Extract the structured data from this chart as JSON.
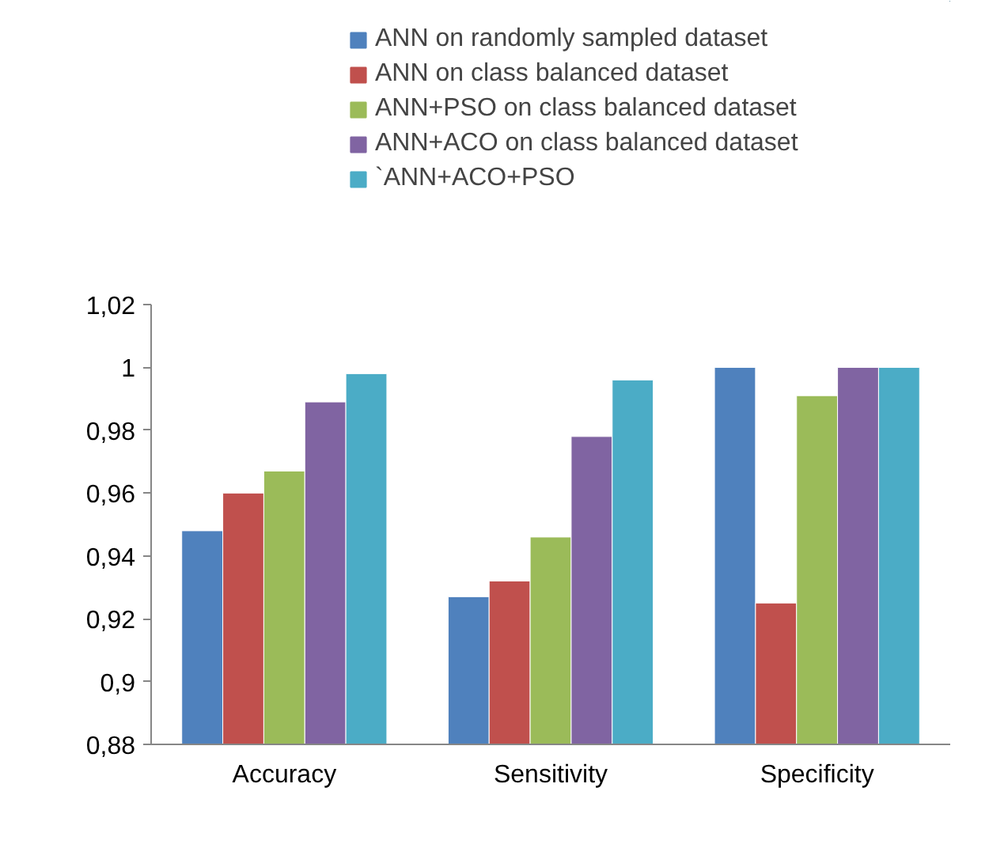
{
  "chart_data": {
    "type": "bar",
    "categories": [
      "Accuracy",
      "Sensitivity",
      "Specificity"
    ],
    "series": [
      {
        "name": "ANN on randomly sampled dataset",
        "color": "#4f81bd",
        "values": [
          0.948,
          0.927,
          1.0
        ]
      },
      {
        "name": "ANN on class balanced dataset",
        "color": "#c0504d",
        "values": [
          0.96,
          0.932,
          0.925
        ]
      },
      {
        "name": "ANN+PSO on class balanced dataset",
        "color": "#9bbb59",
        "values": [
          0.967,
          0.946,
          0.991
        ]
      },
      {
        "name": "ANN+ACO on class balanced dataset",
        "color": "#8064a2",
        "values": [
          0.989,
          0.978,
          1.0
        ]
      },
      {
        "name": "`ANN+ACO+PSO",
        "color": "#4bacc6",
        "values": [
          0.998,
          0.996,
          1.0
        ]
      }
    ],
    "ylim": [
      0.88,
      1.02
    ],
    "yticks": [
      {
        "value": 0.88,
        "label": "0,88"
      },
      {
        "value": 0.9,
        "label": "0,9"
      },
      {
        "value": 0.92,
        "label": "0,92"
      },
      {
        "value": 0.94,
        "label": "0,94"
      },
      {
        "value": 0.96,
        "label": "0,96"
      },
      {
        "value": 0.98,
        "label": "0,98"
      },
      {
        "value": 1.0,
        "label": "1"
      },
      {
        "value": 1.02,
        "label": "1,02"
      }
    ],
    "grid": false,
    "legend": "top"
  }
}
